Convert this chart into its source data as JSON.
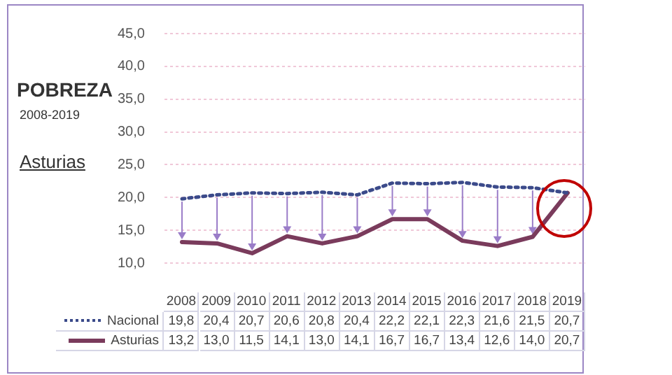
{
  "chart_data": {
    "type": "line",
    "title": "POBREZA",
    "subtitle": "2008-2019",
    "annotations": [
      "Asturias"
    ],
    "categories": [
      "2008",
      "2009",
      "2010",
      "2011",
      "2012",
      "2013",
      "2014",
      "2015",
      "2016",
      "2017",
      "2018",
      "2019"
    ],
    "series": [
      {
        "name": "Nacional",
        "color": "#3b4a8a",
        "line_style": "dotted",
        "values": [
          19.8,
          20.4,
          20.7,
          20.6,
          20.8,
          20.4,
          22.2,
          22.1,
          22.3,
          21.6,
          21.5,
          20.7
        ],
        "value_labels": [
          "19,8",
          "20,4",
          "20,7",
          "20,6",
          "20,8",
          "20,4",
          "22,2",
          "22,1",
          "22,3",
          "21,6",
          "21,5",
          "20,7"
        ]
      },
      {
        "name": "Asturias",
        "color": "#7a3b5c",
        "line_style": "solid",
        "values": [
          13.2,
          13.0,
          11.5,
          14.1,
          13.0,
          14.1,
          16.7,
          16.7,
          13.4,
          12.6,
          14.0,
          20.7
        ],
        "value_labels": [
          "13,2",
          "13,0",
          "11,5",
          "14,1",
          "13,0",
          "14,1",
          "16,7",
          "16,7",
          "13,4",
          "12,6",
          "14,0",
          "20,7"
        ]
      }
    ],
    "ylim": [
      10,
      45
    ],
    "yticks": [
      {
        "value": 10,
        "label": "10,0"
      },
      {
        "value": 15,
        "label": "15,0"
      },
      {
        "value": 20,
        "label": "20,0"
      },
      {
        "value": 25,
        "label": "25,0"
      },
      {
        "value": 30,
        "label": "30,0"
      },
      {
        "value": 35,
        "label": "35,0"
      },
      {
        "value": 40,
        "label": "40,0"
      },
      {
        "value": 45,
        "label": "45,0"
      }
    ],
    "grid": "y",
    "legend": "bottom",
    "marker": "none"
  }
}
